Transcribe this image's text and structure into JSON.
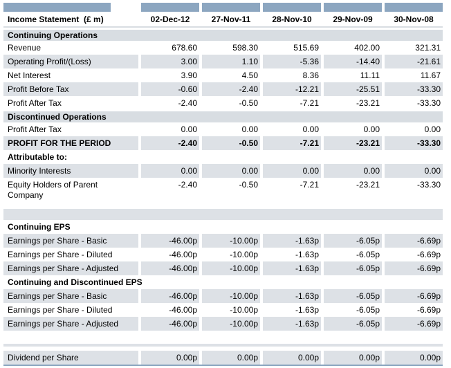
{
  "colors": {
    "header_bar": "#8CA6C0",
    "section_band": "#D8DDE2",
    "row_stripe": "#DDE1E6",
    "bottom_rule": "#8CA6C0",
    "text": "#000000",
    "background": "#FFFFFF"
  },
  "table": {
    "title": "Income Statement  (£ m)",
    "columns": [
      "02-Dec-12",
      "27-Nov-11",
      "28-Nov-10",
      "29-Nov-09",
      "30-Nov-08"
    ],
    "rows": [
      {
        "type": "section",
        "label": "Continuing Operations"
      },
      {
        "type": "data",
        "shade": false,
        "label": "Revenue",
        "values": [
          "678.60",
          "598.30",
          "515.69",
          "402.00",
          "321.31"
        ]
      },
      {
        "type": "data",
        "shade": true,
        "label": "Operating Profit/(Loss)",
        "values": [
          "3.00",
          "1.10",
          "-5.36",
          "-14.40",
          "-21.61"
        ]
      },
      {
        "type": "data",
        "shade": false,
        "label": "Net Interest",
        "values": [
          "3.90",
          "4.50",
          "8.36",
          "11.11",
          "11.67"
        ]
      },
      {
        "type": "data",
        "shade": true,
        "label": "Profit Before Tax",
        "values": [
          "-0.60",
          "-2.40",
          "-12.21",
          "-25.51",
          "-33.30"
        ]
      },
      {
        "type": "data",
        "shade": false,
        "label": "Profit After Tax",
        "values": [
          "-2.40",
          "-0.50",
          "-7.21",
          "-23.21",
          "-33.30"
        ]
      },
      {
        "type": "gap",
        "h": 2
      },
      {
        "type": "section",
        "label": "Discontinued Operations"
      },
      {
        "type": "data",
        "shade": false,
        "label": "Profit After Tax",
        "values": [
          "0.00",
          "0.00",
          "0.00",
          "0.00",
          "0.00"
        ]
      },
      {
        "type": "data",
        "shade": true,
        "bold": true,
        "label": "PROFIT FOR THE PERIOD",
        "values": [
          "-2.40",
          "-0.50",
          "-7.21",
          "-23.21",
          "-33.30"
        ]
      },
      {
        "type": "subheader",
        "label": "Attributable to:"
      },
      {
        "type": "data",
        "shade": true,
        "label": "Minority Interests",
        "values": [
          "0.00",
          "0.00",
          "0.00",
          "0.00",
          "0.00"
        ]
      },
      {
        "type": "data",
        "shade": false,
        "tall": true,
        "label": "Equity Holders of Parent Company",
        "values": [
          "-2.40",
          "-0.50",
          "-7.21",
          "-23.21",
          "-33.30"
        ]
      },
      {
        "type": "gap",
        "h": 4
      },
      {
        "type": "spacer",
        "h": 16
      },
      {
        "type": "subheader",
        "label": "Continuing EPS"
      },
      {
        "type": "data",
        "shade": true,
        "label": "Earnings per Share - Basic",
        "values": [
          "-46.00p",
          "-10.00p",
          "-1.63p",
          "-6.05p",
          "-6.69p"
        ]
      },
      {
        "type": "data",
        "shade": false,
        "label": "Earnings per Share - Diluted",
        "values": [
          "-46.00p",
          "-10.00p",
          "-1.63p",
          "-6.05p",
          "-6.69p"
        ]
      },
      {
        "type": "data",
        "shade": true,
        "label": "Earnings per Share - Adjusted",
        "values": [
          "-46.00p",
          "-10.00p",
          "-1.63p",
          "-6.05p",
          "-6.69p"
        ]
      },
      {
        "type": "subheader",
        "label": "Continuing and Discontinued EPS"
      },
      {
        "type": "data",
        "shade": true,
        "label": "Earnings per Share - Basic",
        "values": [
          "-46.00p",
          "-10.00p",
          "-1.63p",
          "-6.05p",
          "-6.69p"
        ]
      },
      {
        "type": "data",
        "shade": false,
        "label": "Earnings per Share - Diluted",
        "values": [
          "-46.00p",
          "-10.00p",
          "-1.63p",
          "-6.05p",
          "-6.69p"
        ]
      },
      {
        "type": "data",
        "shade": true,
        "label": "Earnings per Share - Adjusted",
        "values": [
          "-46.00p",
          "-10.00p",
          "-1.63p",
          "-6.05p",
          "-6.69p"
        ]
      },
      {
        "type": "gap",
        "h": 19
      },
      {
        "type": "spacer",
        "h": 4
      },
      {
        "type": "gap",
        "h": 6
      },
      {
        "type": "data",
        "shade": true,
        "label": "Dividend per Share",
        "values": [
          "0.00p",
          "0.00p",
          "0.00p",
          "0.00p",
          "0.00p"
        ]
      },
      {
        "type": "rule",
        "h": 2
      }
    ]
  }
}
